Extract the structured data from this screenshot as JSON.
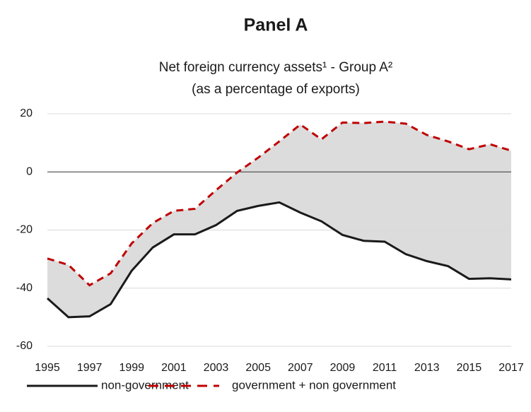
{
  "chart_data": {
    "type": "line",
    "title": "Panel A",
    "subtitle": [
      "Net foreign currency assets¹ - Group A²",
      "(as a percentage of exports)"
    ],
    "x": [
      1995,
      1996,
      1997,
      1998,
      1999,
      2000,
      2001,
      2002,
      2003,
      2004,
      2005,
      2006,
      2007,
      2008,
      2009,
      2010,
      2011,
      2012,
      2013,
      2014,
      2015,
      2016,
      2017
    ],
    "series": [
      {
        "name": "non-government",
        "color": "#1a1a1a",
        "style": "solid",
        "values": [
          -43.5,
          -50,
          -49.7,
          -45.5,
          -34,
          -26,
          -21.5,
          -21.5,
          -18.3,
          -13.4,
          -11.7,
          -10.5,
          -14,
          -17,
          -21.7,
          -23.7,
          -24,
          -28.3,
          -30.7,
          -32.4,
          -36.8,
          -36.6,
          -37
        ]
      },
      {
        "name": "government + non government",
        "color": "#c00000",
        "style": "dashed",
        "values": [
          -29.8,
          -32,
          -39,
          -34.9,
          -24.6,
          -17.6,
          -13.4,
          -12.7,
          -6.3,
          -0.2,
          4.9,
          10.5,
          16.3,
          11.2,
          17,
          16.8,
          17.3,
          16.6,
          12.7,
          10.5,
          7.8,
          9.5,
          7.3
        ]
      }
    ],
    "fill_between": "#dcdcdc",
    "xlim": [
      1995,
      2017
    ],
    "xticks": [
      1995,
      1997,
      1999,
      2001,
      2003,
      2005,
      2007,
      2009,
      2011,
      2013,
      2015,
      2017
    ],
    "ylim": [
      -60,
      20
    ],
    "yticks": [
      -60,
      -40,
      -20,
      0,
      20
    ],
    "grid": true,
    "legend": "bottom"
  }
}
